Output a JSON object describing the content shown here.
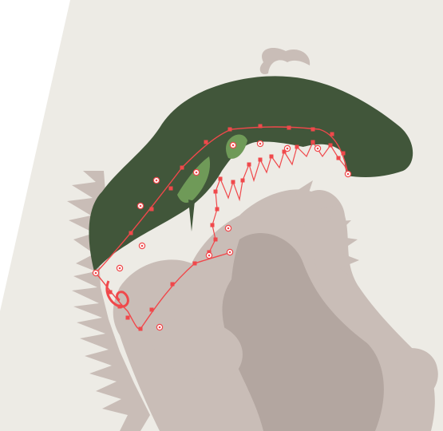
{
  "canvas": {
    "background_color": "#ffffff",
    "paper_color": "#edebe5",
    "creature_color": "#c9bdb7",
    "creature_shadow_color": "#b3a6a0",
    "head_fill_color": "#41563a",
    "highlight_fill_color": "#6f9a58",
    "path_stroke_color": "#f0484b",
    "anchor_fill_color": "#f0484b",
    "center_marker_color": "#f0484b"
  },
  "tool": {
    "mode": "direct-selection",
    "selected_object": "head-shape"
  },
  "icons": {
    "anchor": "square-anchor-point",
    "center_point": "circle-center-marker"
  }
}
